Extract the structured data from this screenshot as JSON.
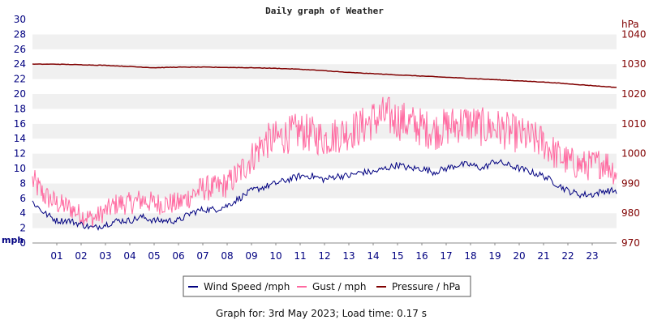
{
  "chart_data": {
    "type": "line",
    "title": "Daily graph of Weather",
    "left_axis": {
      "unit": "mph",
      "range": [
        0,
        30
      ],
      "ticks": [
        0,
        2,
        4,
        6,
        8,
        10,
        12,
        14,
        16,
        18,
        20,
        22,
        24,
        26,
        28,
        30
      ]
    },
    "right_axis": {
      "unit": "hPa",
      "range": [
        970,
        1045
      ],
      "ticks": [
        970,
        980,
        990,
        1000,
        1010,
        1020,
        1030,
        1040
      ]
    },
    "x_axis": {
      "range": [
        0,
        24
      ],
      "tick_labels": [
        "01",
        "02",
        "03",
        "04",
        "05",
        "06",
        "07",
        "08",
        "09",
        "10",
        "11",
        "12",
        "13",
        "14",
        "15",
        "16",
        "17",
        "18",
        "19",
        "20",
        "21",
        "22",
        "23"
      ]
    },
    "grid": "horizontal bands",
    "legend_position": "bottom",
    "series": [
      {
        "name": "Wind Speed /mph",
        "axis": "left",
        "color": "#000080",
        "x": [
          0,
          0.5,
          1,
          1.5,
          2,
          2.5,
          3,
          3.5,
          4,
          4.5,
          5,
          5.5,
          6,
          6.5,
          7,
          7.5,
          8,
          8.5,
          9,
          9.5,
          10,
          10.5,
          11,
          11.5,
          12,
          12.5,
          13,
          13.5,
          14,
          14.5,
          15,
          15.5,
          16,
          16.5,
          17,
          17.5,
          18,
          18.5,
          19,
          19.5,
          20,
          20.5,
          21,
          21.5,
          22,
          22.5,
          23,
          23.5,
          24
        ],
        "y": [
          5.5,
          4,
          3,
          3,
          2.5,
          2,
          2.5,
          3,
          3,
          3.5,
          3,
          3,
          3,
          4,
          4.5,
          4.5,
          5,
          6,
          7,
          7.5,
          8,
          8.5,
          9,
          9,
          8.5,
          9,
          9,
          9.5,
          9.5,
          10,
          10.5,
          10,
          10,
          9.5,
          10,
          10.5,
          10.5,
          10,
          11,
          10.5,
          10,
          9.5,
          9,
          8,
          7,
          6.5,
          6.5,
          7,
          7
        ]
      },
      {
        "name": "Gust / mph",
        "axis": "left",
        "color": "#ff69a0",
        "x": [
          0,
          0.5,
          1,
          1.5,
          2,
          2.5,
          3,
          3.5,
          4,
          4.5,
          5,
          5.5,
          6,
          6.5,
          7,
          7.5,
          8,
          8.5,
          9,
          9.5,
          10,
          10.5,
          11,
          11.5,
          12,
          12.5,
          13,
          13.5,
          14,
          14.5,
          15,
          15.5,
          16,
          16.5,
          17,
          17.5,
          18,
          18.5,
          19,
          19.5,
          20,
          20.5,
          21,
          21.5,
          22,
          22.5,
          23,
          23.5,
          24
        ],
        "y": [
          8,
          6,
          5,
          4.5,
          3.5,
          3,
          4,
          5,
          5,
          5.5,
          5,
          5,
          5,
          6,
          7,
          7,
          7.5,
          9,
          11,
          13,
          13.5,
          14,
          14.5,
          14,
          13.5,
          14,
          14.5,
          15,
          16,
          16.5,
          16,
          15.5,
          15,
          14.5,
          15,
          15.5,
          15.5,
          15,
          15,
          14.5,
          14,
          13.5,
          13,
          11.5,
          10.5,
          10,
          10,
          10.5,
          9
        ]
      },
      {
        "name": "Pressure / hPa",
        "axis": "right",
        "color": "#800000",
        "x": [
          0,
          1,
          2,
          3,
          4,
          5,
          6,
          7,
          8,
          9,
          10,
          11,
          12,
          13,
          14,
          15,
          16,
          17,
          18,
          19,
          20,
          21,
          22,
          23,
          24
        ],
        "y": [
          1030,
          1030,
          1029.8,
          1029.6,
          1029.2,
          1028.8,
          1029,
          1029,
          1028.9,
          1028.8,
          1028.6,
          1028.3,
          1027.8,
          1027.2,
          1026.8,
          1026.4,
          1026,
          1025.6,
          1025.2,
          1024.8,
          1024.4,
          1024,
          1023.4,
          1022.8,
          1022.2
        ]
      }
    ]
  },
  "footer": {
    "text": "Graph for: 3rd May 2023; Load time: 0.17 s"
  }
}
